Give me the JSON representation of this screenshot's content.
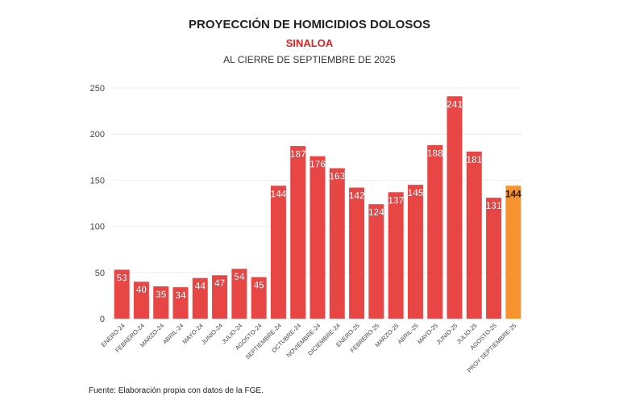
{
  "chart_data": {
    "type": "bar",
    "title": "PROYECCIÓN DE HOMICIDIOS DOLOSOS",
    "subtitle": "SINALOA",
    "subtitle2": "AL CIERRE DE SEPTIEMBRE DE 2025",
    "xlabel": "",
    "ylabel": "",
    "ylim": [
      0,
      250
    ],
    "yticks": [
      0,
      50,
      100,
      150,
      200,
      250
    ],
    "grid": true,
    "categories": [
      "ENERO-24",
      "FEBRERO-24",
      "MARZO-24",
      "ABRIL-24",
      "MAYO-24",
      "JUNIO-24",
      "JULIO-24",
      "AGOSTO-24",
      "SEPTIEMBRE-24",
      "OCTUBRE-24",
      "NOVIEMBRE-24",
      "DICIEMBRE-24",
      "ENERO-25",
      "FEBRERO-25",
      "MARZO-25",
      "ABRIL-25",
      "MAYO-25",
      "JUNIO-25",
      "JULIO-25",
      "AGOSTO-25",
      "PROY SEPTIEMBRE-25"
    ],
    "values": [
      53,
      40,
      35,
      34,
      44,
      47,
      54,
      45,
      144,
      187,
      176,
      163,
      142,
      124,
      137,
      145,
      188,
      241,
      181,
      131,
      144
    ],
    "colors": {
      "actual": "#e84545",
      "projection": "#f7932e"
    },
    "source": "Fuente: Elaboración propia con datos de la FGE."
  }
}
